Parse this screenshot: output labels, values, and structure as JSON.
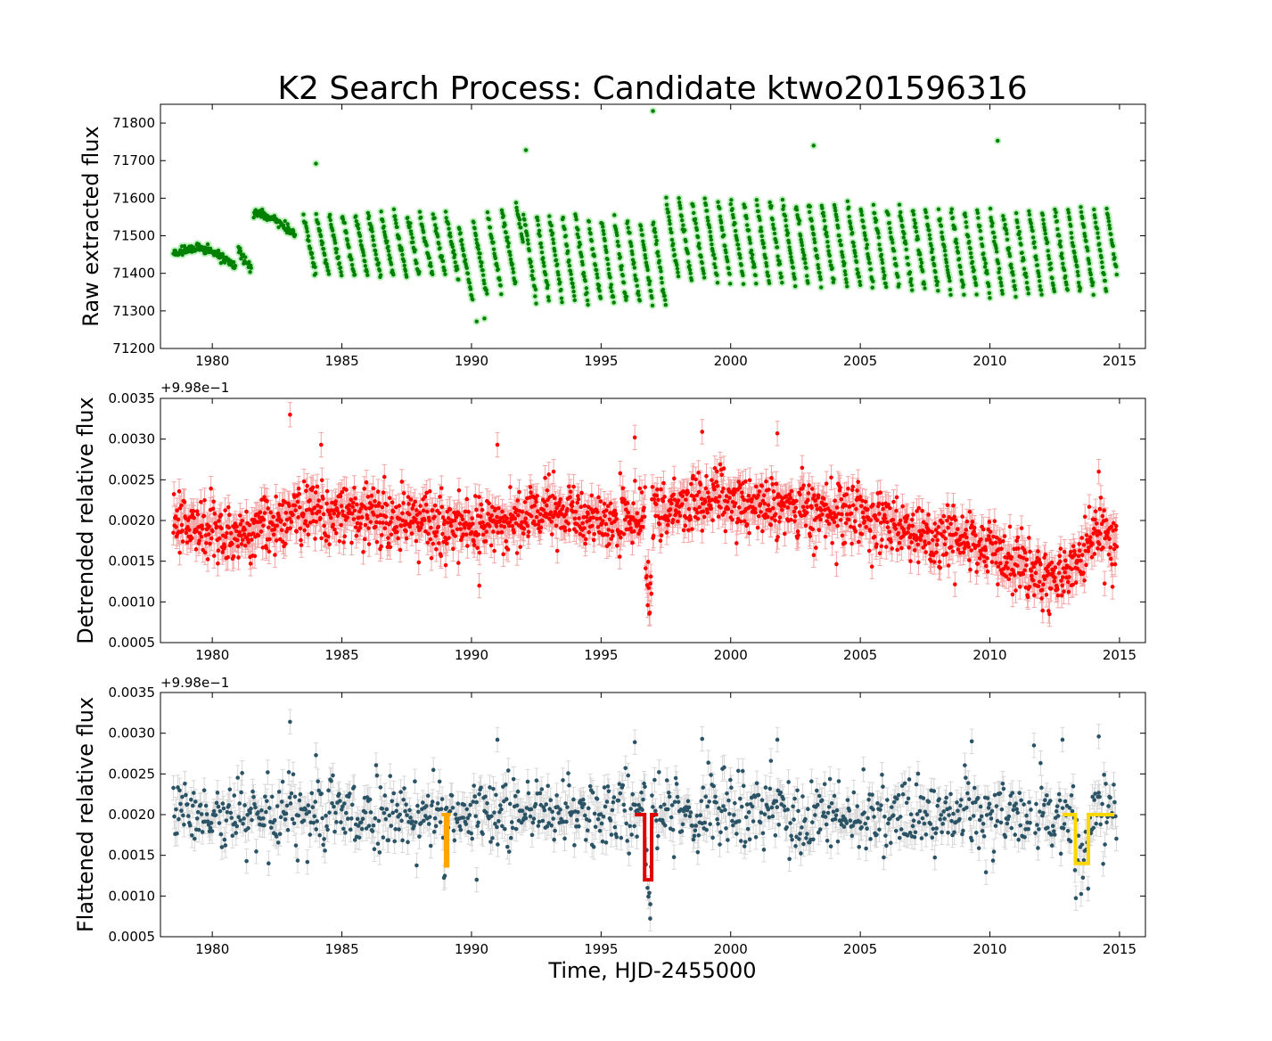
{
  "figure": {
    "title": "K2 Search Process: Candidate ktwo201596316",
    "xlabel": "Time, HJD-2455000"
  },
  "colors": {
    "raw_points": "#008000",
    "raw_halo": "#bff0bf",
    "detrended_points": "#ff0000",
    "detrended_errors": "#f4a6a6",
    "flattened_points": "#2a5366",
    "flattened_errors": "#d8d8d8",
    "model_1": "#ffa500",
    "model_2": "#e00000",
    "model_3": "#ffd700"
  },
  "chart_data": [
    {
      "id": "raw",
      "type": "scatter",
      "ylabel": "Raw extracted flux",
      "xlim": [
        1978,
        2016
      ],
      "ylim": [
        71200,
        71850
      ],
      "xticks": [
        "1980",
        "1985",
        "1990",
        "1995",
        "2000",
        "2005",
        "2010",
        "2015"
      ],
      "xtick_values": [
        1980,
        1985,
        1990,
        1995,
        2000,
        2005,
        2010,
        2015
      ],
      "yticks": [
        "71200",
        "71300",
        "71400",
        "71500",
        "71600",
        "71700",
        "71800"
      ],
      "ytick_values": [
        71200,
        71300,
        71400,
        71500,
        71600,
        71700,
        71800
      ],
      "x_start": 1978.5,
      "x_end": 2014.9,
      "cadence": 0.0204,
      "segments": [
        {
          "x0": 1978.5,
          "x1": 1980.9,
          "start": 71450,
          "end": 71415,
          "drop": 0,
          "hump": 55
        },
        {
          "x0": 1981.0,
          "x1": 1981.5,
          "start": 71465,
          "end": 71410,
          "drop": 0,
          "hump": 0
        },
        {
          "x0": 1981.6,
          "x1": 1983.2,
          "start": 71560,
          "end": 71500,
          "drop": 0,
          "hump": 20
        },
        {
          "x0": 1983.5,
          "x1": 1989.5,
          "start": 71560,
          "end": 71560,
          "drop": 170,
          "period": 0.5
        },
        {
          "x0": 1989.5,
          "x1": 1992.0,
          "start": 71530,
          "end": 71600,
          "drop": 220,
          "period": 0.55
        },
        {
          "x0": 1992.0,
          "x1": 1997.5,
          "start": 71560,
          "end": 71540,
          "drop": 230,
          "period": 0.5
        },
        {
          "x0": 1997.5,
          "x1": 2006.5,
          "start": 71600,
          "end": 71580,
          "drop": 220,
          "period": 0.5
        },
        {
          "x0": 2006.5,
          "x1": 2011.5,
          "start": 71580,
          "end": 71560,
          "drop": 220,
          "period": 0.5
        },
        {
          "x0": 2011.5,
          "x1": 2014.9,
          "start": 71570,
          "end": 71580,
          "drop": 230,
          "period": 0.5
        }
      ],
      "outliers": [
        {
          "x": 1984.0,
          "y": 71692
        },
        {
          "x": 1992.1,
          "y": 71728
        },
        {
          "x": 1997.0,
          "y": 71832
        },
        {
          "x": 2003.2,
          "y": 71740
        },
        {
          "x": 2010.3,
          "y": 71753
        },
        {
          "x": 1990.2,
          "y": 71272
        },
        {
          "x": 1990.5,
          "y": 71280
        }
      ]
    },
    {
      "id": "detrended",
      "type": "scatter",
      "ylabel": "Detrended relative flux",
      "offset_label": "+9.98e−1",
      "xlim": [
        1978,
        2016
      ],
      "ylim": [
        0.0005,
        0.0035
      ],
      "xticks": [
        "1980",
        "1985",
        "1990",
        "1995",
        "2000",
        "2005",
        "2010",
        "2015"
      ],
      "xtick_values": [
        1980,
        1985,
        1990,
        1995,
        2000,
        2005,
        2010,
        2015
      ],
      "yticks": [
        "0.0005",
        "0.0010",
        "0.0015",
        "0.0020",
        "0.0025",
        "0.0030",
        "0.0035"
      ],
      "ytick_values": [
        0.0005,
        0.001,
        0.0015,
        0.002,
        0.0025,
        0.003,
        0.0035
      ],
      "x_start": 1978.5,
      "x_end": 2014.9,
      "cadence": 0.0204,
      "error": 0.00015,
      "scatter": 0.00018,
      "trend": [
        {
          "x": 1978.5,
          "y": 0.00195
        },
        {
          "x": 1981.0,
          "y": 0.0018
        },
        {
          "x": 1983.0,
          "y": 0.0021
        },
        {
          "x": 1985.0,
          "y": 0.0021
        },
        {
          "x": 1987.0,
          "y": 0.002
        },
        {
          "x": 1990.0,
          "y": 0.0019
        },
        {
          "x": 1993.0,
          "y": 0.0021
        },
        {
          "x": 1996.0,
          "y": 0.00195
        },
        {
          "x": 1999.0,
          "y": 0.00225
        },
        {
          "x": 2001.0,
          "y": 0.0022
        },
        {
          "x": 2005.0,
          "y": 0.00205
        },
        {
          "x": 2008.0,
          "y": 0.0018
        },
        {
          "x": 2010.0,
          "y": 0.00165
        },
        {
          "x": 2012.0,
          "y": 0.0013
        },
        {
          "x": 2013.0,
          "y": 0.00135
        },
        {
          "x": 2013.6,
          "y": 0.0016
        },
        {
          "x": 2014.1,
          "y": 0.0019
        },
        {
          "x": 2014.9,
          "y": 0.0017
        }
      ],
      "dips": [
        {
          "x0": 1996.7,
          "x1": 1996.95,
          "depth": 0.001
        }
      ],
      "outliers": [
        {
          "x": 1983.0,
          "y": 0.0033
        },
        {
          "x": 1984.2,
          "y": 0.00293
        },
        {
          "x": 1991.0,
          "y": 0.00293
        },
        {
          "x": 1996.3,
          "y": 0.00302
        },
        {
          "x": 1998.9,
          "y": 0.00309
        },
        {
          "x": 2001.8,
          "y": 0.00307
        },
        {
          "x": 2014.2,
          "y": 0.0026
        },
        {
          "x": 1990.3,
          "y": 0.0012
        },
        {
          "x": 2012.3,
          "y": 0.00085
        }
      ]
    },
    {
      "id": "flattened",
      "type": "scatter",
      "ylabel": "Flattened relative flux",
      "offset_label": "+9.98e−1",
      "xlim": [
        1978,
        2016
      ],
      "ylim": [
        0.0005,
        0.0035
      ],
      "xticks": [
        "1980",
        "1985",
        "1990",
        "1995",
        "2000",
        "2005",
        "2010",
        "2015"
      ],
      "xtick_values": [
        1980,
        1985,
        1990,
        1995,
        2000,
        2005,
        2010,
        2015
      ],
      "yticks": [
        "0.0005",
        "0.0010",
        "0.0015",
        "0.0020",
        "0.0025",
        "0.0030",
        "0.0035"
      ],
      "ytick_values": [
        0.0005,
        0.001,
        0.0015,
        0.002,
        0.0025,
        0.003,
        0.0035
      ],
      "x_start": 1978.5,
      "x_end": 2014.9,
      "cadence": 0.034,
      "error": 0.00015,
      "scatter": 0.00022,
      "baseline": 0.002,
      "gaps": [
        [
          2011.6,
          2011.75
        ]
      ],
      "dips": [
        {
          "x0": 1996.7,
          "x1": 1996.95,
          "depth": 0.001
        },
        {
          "x0": 1988.9,
          "x1": 1989.0,
          "depth": 0.0006
        },
        {
          "x0": 2013.3,
          "x1": 2013.8,
          "depth": 0.0006
        }
      ],
      "outliers": [
        {
          "x": 1983.0,
          "y": 0.00314
        },
        {
          "x": 1984.0,
          "y": 0.00273
        },
        {
          "x": 1991.0,
          "y": 0.00292
        },
        {
          "x": 1996.3,
          "y": 0.00289
        },
        {
          "x": 1998.9,
          "y": 0.00293
        },
        {
          "x": 2001.8,
          "y": 0.00292
        },
        {
          "x": 2009.3,
          "y": 0.0029
        },
        {
          "x": 2011.7,
          "y": 0.00285
        },
        {
          "x": 2012.8,
          "y": 0.00292
        },
        {
          "x": 2014.2,
          "y": 0.00296
        },
        {
          "x": 1990.2,
          "y": 0.0012
        },
        {
          "x": 1996.9,
          "y": 0.0009
        }
      ],
      "models": [
        {
          "name": "model-1",
          "color_key": "model_1",
          "x": [
            1988.85,
            1989.0,
            1989.0,
            1989.08,
            1989.08,
            1989.2
          ],
          "y": [
            0.002,
            0.002,
            0.00137,
            0.00137,
            0.002,
            0.002
          ]
        },
        {
          "name": "model-2",
          "color_key": "model_2",
          "x": [
            1996.3,
            1996.68,
            1996.68,
            1996.95,
            1996.95,
            1997.2
          ],
          "y": [
            0.002,
            0.002,
            0.0012,
            0.0012,
            0.002,
            0.002
          ]
        },
        {
          "name": "model-3",
          "color_key": "model_3",
          "x": [
            2012.8,
            2013.3,
            2013.3,
            2013.8,
            2013.8,
            2014.5,
            2014.5,
            2014.8
          ],
          "y": [
            0.002,
            0.002,
            0.0014,
            0.0014,
            0.002,
            0.002,
            0.002,
            0.002
          ]
        }
      ]
    }
  ]
}
